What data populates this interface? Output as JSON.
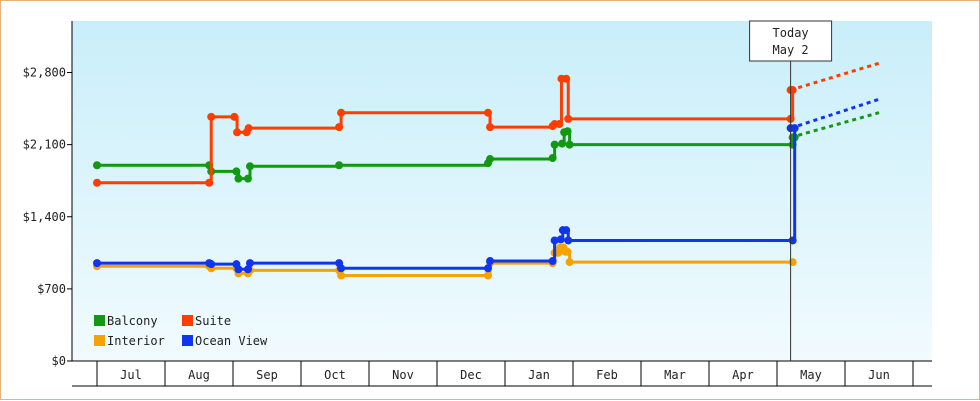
{
  "chart_data": {
    "type": "line",
    "title": "",
    "xlabel": "",
    "ylabel": "",
    "ylim": [
      0,
      3300
    ],
    "yticks": [
      {
        "value": 0,
        "label": "$0"
      },
      {
        "value": 700,
        "label": "$700"
      },
      {
        "value": 1400,
        "label": "$1,400"
      },
      {
        "value": 2100,
        "label": "$2,100"
      },
      {
        "value": 2800,
        "label": "$2,800"
      }
    ],
    "months": [
      "Jul",
      "Aug",
      "Sep",
      "Oct",
      "Nov",
      "Dec",
      "Jan",
      "Feb",
      "Mar",
      "Apr",
      "May",
      "Jun"
    ],
    "x_range": [
      -0.5,
      11.0
    ],
    "step": true,
    "grid": false,
    "legend_position": "bottom-left",
    "today": {
      "x": 9.7,
      "line1": "Today",
      "line2": "May 2"
    },
    "colors": {
      "Balcony": "#119911",
      "Suite": "#ff3d00",
      "Interior": "#f5a300",
      "Ocean View": "#1034f0",
      "plot_top": "#c9eefa",
      "plot_bottom": "#f1fbfe"
    },
    "series": [
      {
        "name": "Balcony",
        "color": "#119911",
        "points": [
          [
            -0.5,
            1900
          ],
          [
            1.15,
            1900
          ],
          [
            1.18,
            1840
          ],
          [
            1.55,
            1840
          ],
          [
            1.58,
            1770
          ],
          [
            1.72,
            1770
          ],
          [
            1.75,
            1890
          ],
          [
            3.06,
            1900
          ],
          [
            5.25,
            1920
          ],
          [
            5.28,
            1960
          ],
          [
            6.2,
            1970
          ],
          [
            6.23,
            2100
          ],
          [
            6.34,
            2110
          ],
          [
            6.37,
            2220
          ],
          [
            6.42,
            2230
          ],
          [
            6.45,
            2100
          ],
          [
            9.73,
            2100
          ],
          [
            9.76,
            2170
          ],
          [
            9.73,
            2170
          ]
        ],
        "forecast": [
          [
            9.7,
            2170
          ],
          [
            11.0,
            2410
          ]
        ]
      },
      {
        "name": "Suite",
        "color": "#ff3d00",
        "points": [
          [
            -0.5,
            1730
          ],
          [
            1.15,
            1730
          ],
          [
            1.18,
            2370
          ],
          [
            1.52,
            2370
          ],
          [
            1.56,
            2220
          ],
          [
            1.7,
            2220
          ],
          [
            1.73,
            2260
          ],
          [
            3.06,
            2270
          ],
          [
            3.09,
            2410
          ],
          [
            5.25,
            2410
          ],
          [
            5.28,
            2270
          ],
          [
            6.2,
            2280
          ],
          [
            6.23,
            2300
          ],
          [
            6.3,
            2300
          ],
          [
            6.33,
            2740
          ],
          [
            6.4,
            2740
          ],
          [
            6.43,
            2350
          ],
          [
            9.7,
            2350
          ],
          [
            9.73,
            2630
          ],
          [
            9.7,
            2630
          ]
        ],
        "forecast": [
          [
            9.7,
            2630
          ],
          [
            11.0,
            2890
          ]
        ]
      },
      {
        "name": "Interior",
        "color": "#f5a300",
        "points": [
          [
            -0.5,
            920
          ],
          [
            1.15,
            920
          ],
          [
            1.18,
            900
          ],
          [
            1.55,
            900
          ],
          [
            1.58,
            850
          ],
          [
            1.72,
            850
          ],
          [
            1.75,
            880
          ],
          [
            3.06,
            880
          ],
          [
            3.09,
            830
          ],
          [
            5.25,
            830
          ],
          [
            5.28,
            950
          ],
          [
            6.2,
            950
          ],
          [
            6.23,
            1050
          ],
          [
            6.28,
            1050
          ],
          [
            6.31,
            1100
          ],
          [
            6.36,
            1100
          ],
          [
            6.39,
            1060
          ],
          [
            6.42,
            1060
          ],
          [
            6.45,
            960
          ],
          [
            9.73,
            960
          ]
        ],
        "forecast": []
      },
      {
        "name": "Ocean View",
        "color": "#1034f0",
        "points": [
          [
            -0.5,
            950
          ],
          [
            1.15,
            950
          ],
          [
            1.18,
            940
          ],
          [
            1.55,
            940
          ],
          [
            1.58,
            890
          ],
          [
            1.72,
            890
          ],
          [
            1.75,
            950
          ],
          [
            3.06,
            950
          ],
          [
            3.09,
            900
          ],
          [
            5.25,
            900
          ],
          [
            5.28,
            970
          ],
          [
            6.2,
            970
          ],
          [
            6.23,
            1170
          ],
          [
            6.32,
            1180
          ],
          [
            6.35,
            1270
          ],
          [
            6.4,
            1270
          ],
          [
            6.43,
            1170
          ],
          [
            9.73,
            1170
          ],
          [
            9.76,
            2260
          ],
          [
            9.7,
            2260
          ]
        ],
        "forecast": [
          [
            9.7,
            2260
          ],
          [
            11.0,
            2540
          ]
        ]
      }
    ]
  }
}
